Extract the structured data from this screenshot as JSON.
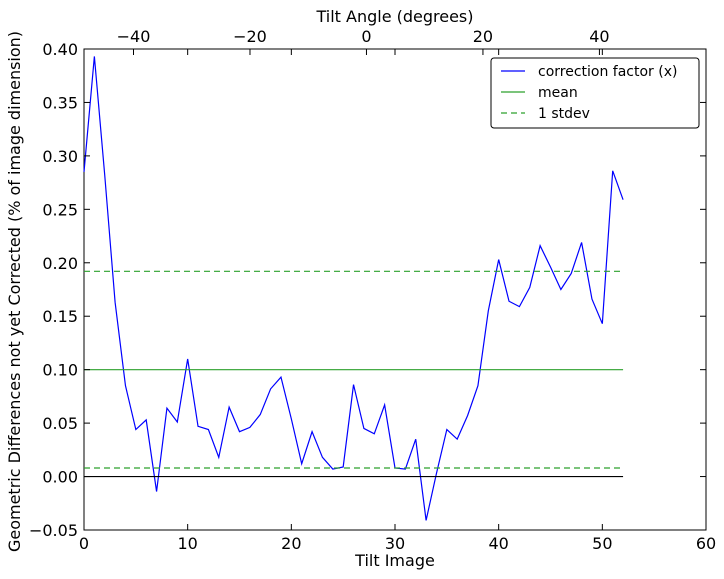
{
  "chart_data": {
    "type": "line",
    "xlabel": "Tilt Image",
    "ylabel": "Geometric Differences not yet Corrected (% of image dimension)",
    "top_xlabel": "Tilt Angle (degrees)",
    "xlim": [
      0,
      60
    ],
    "ylim": [
      -0.05,
      0.4
    ],
    "top_xlim": [
      -48.5,
      58.3
    ],
    "x_ticks": [
      "0",
      "10",
      "20",
      "30",
      "40",
      "50",
      "60"
    ],
    "y_ticks": [
      "−0.05",
      "0.00",
      "0.05",
      "0.10",
      "0.15",
      "0.20",
      "0.25",
      "0.30",
      "0.35",
      "0.40"
    ],
    "top_ticks": [
      "−40",
      "−20",
      "0",
      "20",
      "40"
    ],
    "top_tick_values": [
      -40,
      -20,
      0,
      20,
      40
    ],
    "grid": false,
    "legend_position": "top-right",
    "series": [
      {
        "name": "correction factor (x)",
        "color": "#0000ff",
        "x": [
          0,
          1,
          2,
          3,
          4,
          5,
          6,
          7,
          8,
          9,
          10,
          11,
          12,
          13,
          14,
          15,
          16,
          17,
          18,
          19,
          20,
          21,
          22,
          23,
          24,
          25,
          26,
          27,
          28,
          29,
          30,
          31,
          32,
          33,
          34,
          35,
          36,
          37,
          38,
          39,
          40,
          41,
          42,
          43,
          44,
          45,
          46,
          47,
          48,
          49,
          50,
          51,
          52
        ],
        "y": [
          0.285,
          0.393,
          0.282,
          0.163,
          0.085,
          0.044,
          0.053,
          -0.014,
          0.064,
          0.051,
          0.11,
          0.047,
          0.044,
          0.018,
          0.065,
          0.042,
          0.046,
          0.058,
          0.082,
          0.093,
          0.054,
          0.012,
          0.042,
          0.018,
          0.007,
          0.009,
          0.086,
          0.045,
          0.04,
          0.067,
          0.008,
          0.007,
          0.035,
          -0.041,
          0.003,
          0.044,
          0.035,
          0.057,
          0.085,
          0.155,
          0.203,
          0.164,
          0.159,
          0.177,
          0.216,
          0.196,
          0.175,
          0.19,
          0.219,
          0.166,
          0.143,
          0.286,
          0.259
        ]
      },
      {
        "name": "mean",
        "color": "#2ca02c",
        "x": [
          0,
          52
        ],
        "y": [
          0.1,
          0.1
        ]
      },
      {
        "name": "1 stdev",
        "color": "#2ca02c",
        "dashed": true,
        "x": [
          0,
          52
        ],
        "y": [
          0.192,
          0.192
        ]
      },
      {
        "name": "",
        "color": "#2ca02c",
        "dashed": true,
        "x": [
          0,
          52
        ],
        "y": [
          0.008,
          0.008
        ]
      },
      {
        "name": "",
        "color": "#000000",
        "x": [
          0,
          52
        ],
        "y": [
          0.0,
          0.0
        ]
      }
    ],
    "legend": [
      {
        "label": "correction factor (x)",
        "color": "#0000ff",
        "dashed": false
      },
      {
        "label": "mean",
        "color": "#2ca02c",
        "dashed": false
      },
      {
        "label": "1 stdev",
        "color": "#2ca02c",
        "dashed": true
      }
    ]
  }
}
